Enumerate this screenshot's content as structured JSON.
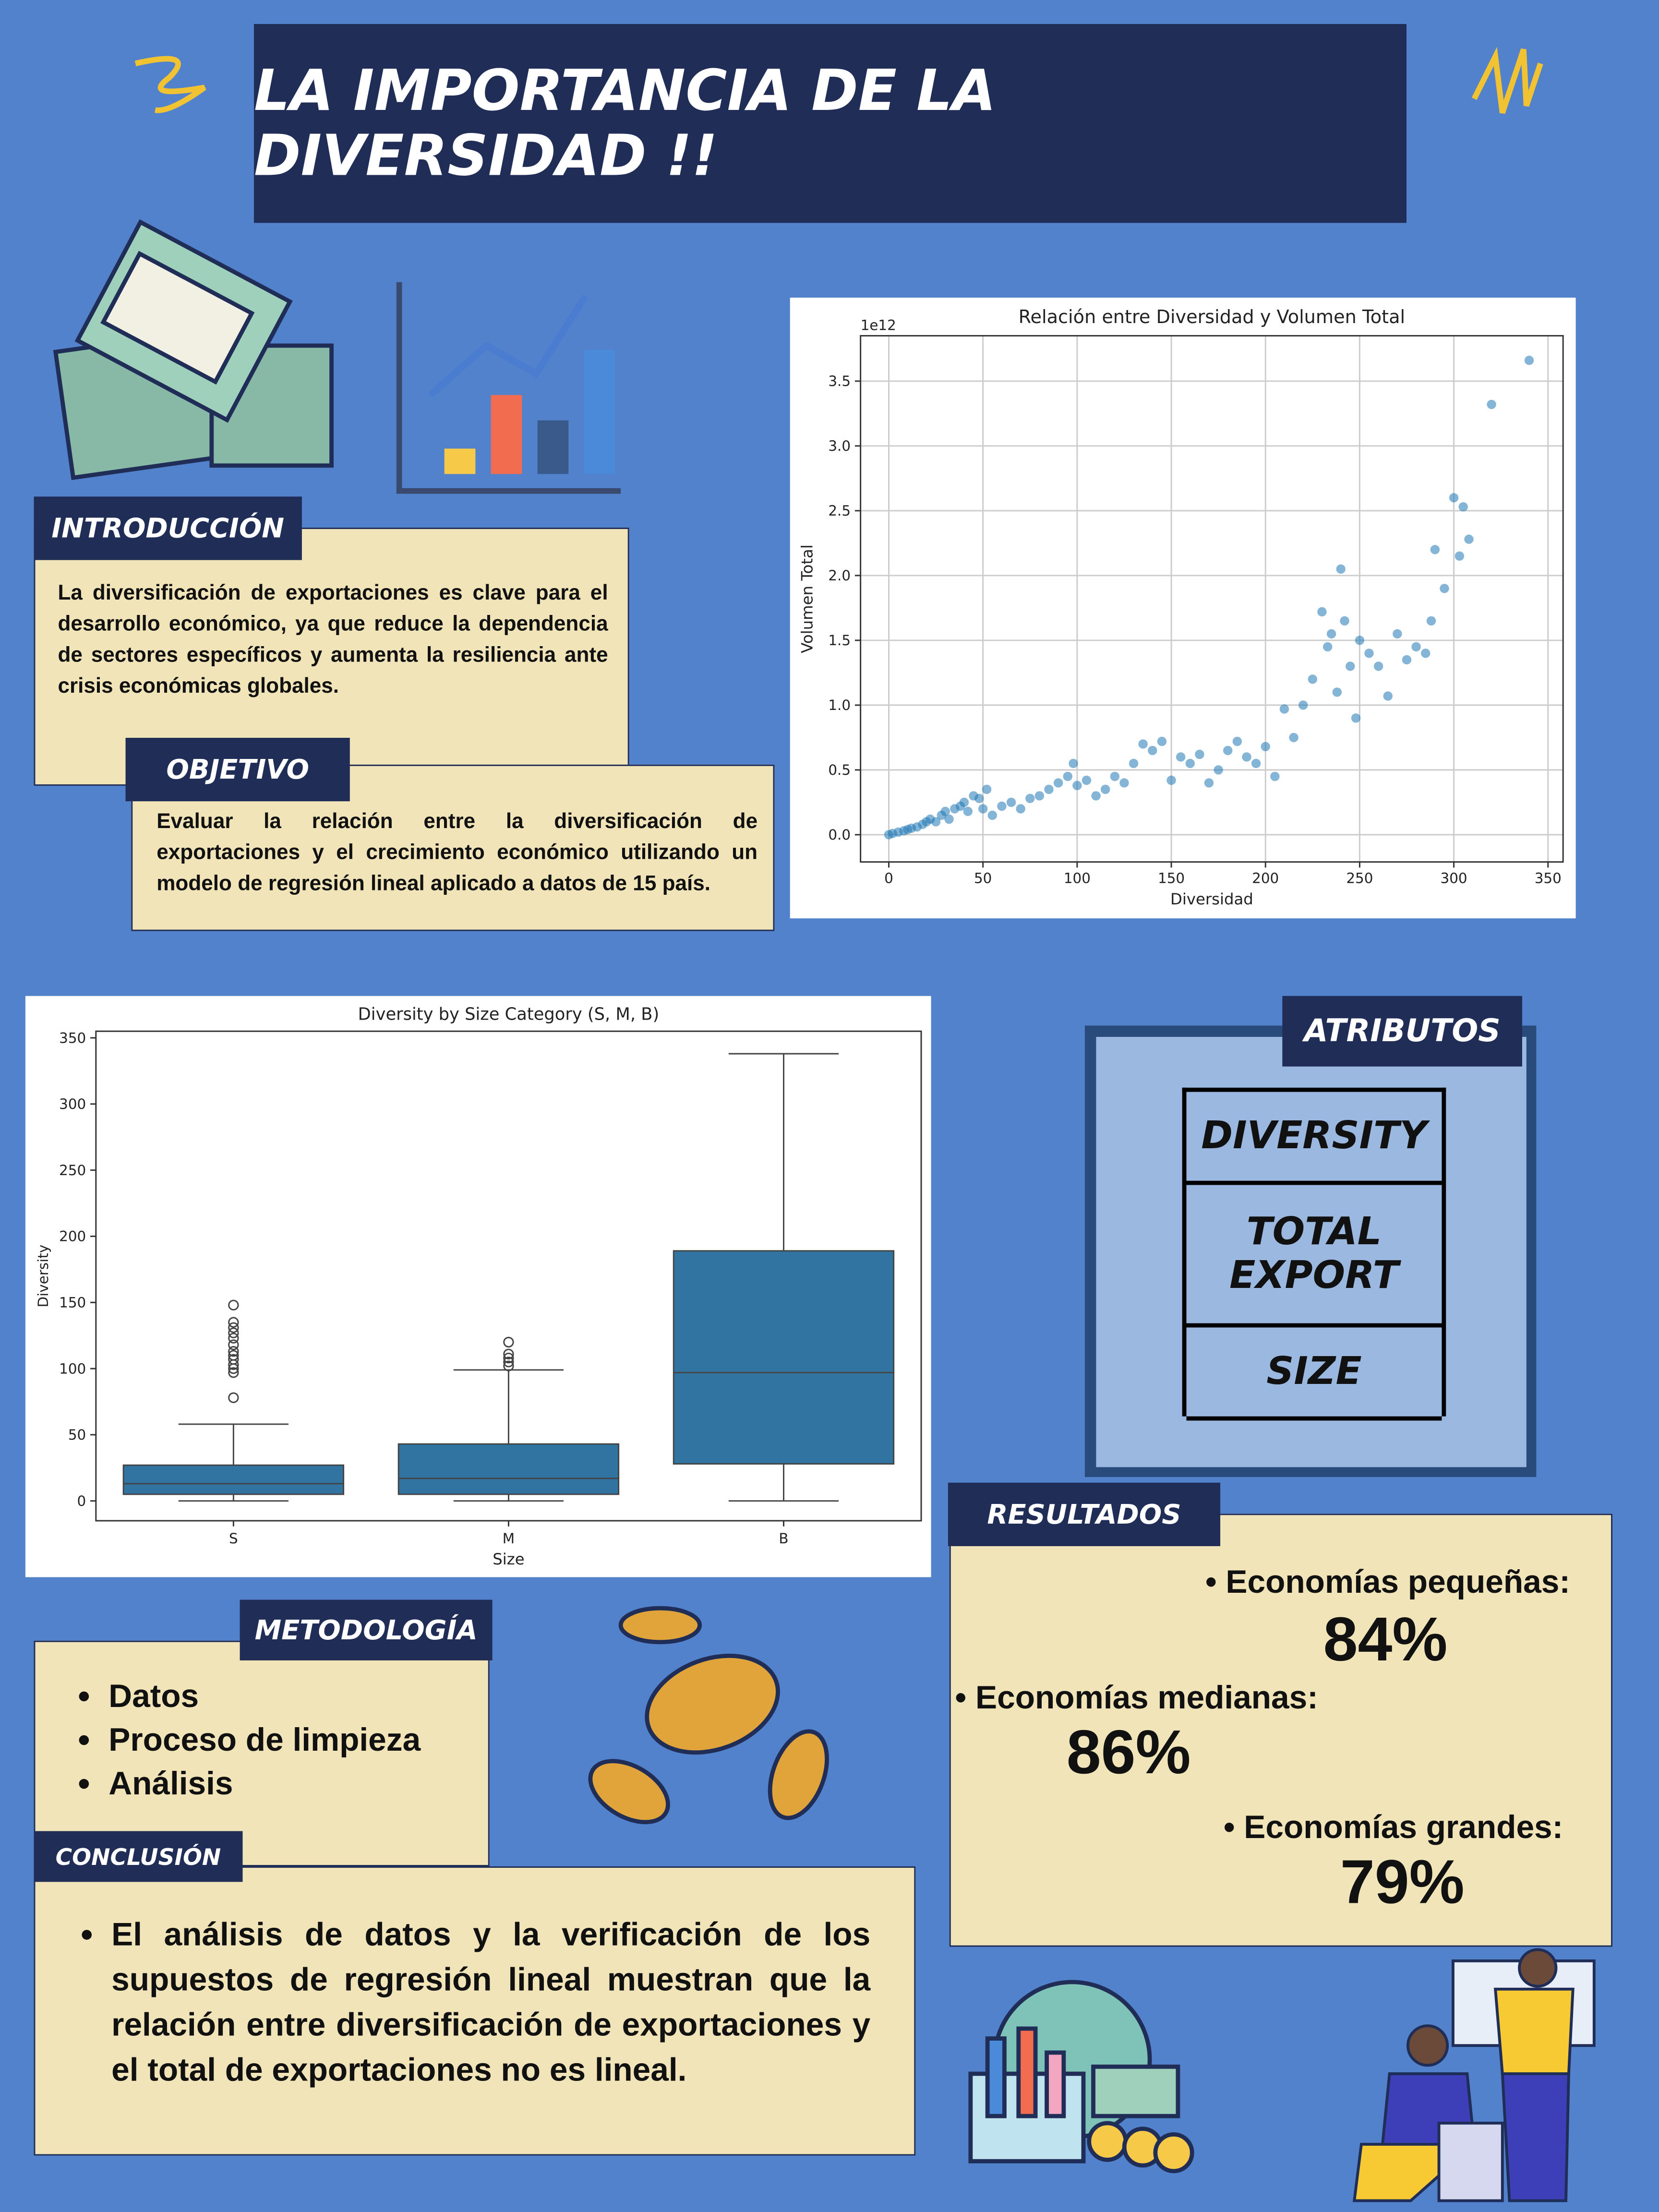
{
  "header": {
    "title": "LA IMPORTANCIA DE LA DIVERSIDAD !!"
  },
  "introduccion": {
    "label": "INTRODUCCIÓN",
    "text": "La diversificación de exportaciones es clave para el desarrollo económico, ya que reduce la dependencia de sectores específicos y aumenta la resiliencia ante crisis económicas globales."
  },
  "objetivo": {
    "label": "OBJETIVO",
    "text": "Evaluar la relación entre la diversificación de exportaciones y el crecimiento económico utilizando un modelo de regresión lineal aplicado a datos de 15 país."
  },
  "atributos": {
    "label": "ATRIBUTOS",
    "items": [
      "DIVERSITY",
      "TOTAL EXPORT",
      "SIZE"
    ]
  },
  "resultados": {
    "label": "RESULTADOS",
    "items": [
      {
        "label": "Economías pequeñas:",
        "value": "84%"
      },
      {
        "label": "Economías medianas:",
        "value": "86%"
      },
      {
        "label": "Economías grandes:",
        "value": "79%"
      }
    ]
  },
  "metodologia": {
    "label": "METODOLOGÍA",
    "items": [
      "Datos",
      "Proceso de limpieza",
      "Análisis"
    ]
  },
  "conclusion": {
    "label": "CONCLUSIÓN",
    "items": [
      "El análisis de datos y la verificación de los supuestos de regresión lineal muestran que la relación entre diversificación de exportaciones y el total de exportaciones no es lineal."
    ]
  },
  "chart_data": [
    {
      "type": "scatter",
      "title": "Relación entre Diversidad y Volumen Total",
      "xlabel": "Diversidad",
      "ylabel": "Volumen Total",
      "y_offset_label": "1e12",
      "color": "#1f77b4",
      "grid": true,
      "x": [
        0,
        2,
        5,
        8,
        10,
        12,
        15,
        18,
        20,
        22,
        25,
        28,
        30,
        32,
        35,
        38,
        40,
        42,
        45,
        48,
        50,
        52,
        55,
        60,
        65,
        70,
        75,
        80,
        85,
        90,
        95,
        98,
        100,
        105,
        110,
        115,
        120,
        125,
        130,
        135,
        140,
        145,
        150,
        155,
        160,
        165,
        170,
        175,
        180,
        185,
        190,
        195,
        200,
        205,
        210,
        215,
        220,
        225,
        230,
        233,
        235,
        238,
        240,
        242,
        245,
        248,
        250,
        255,
        260,
        265,
        270,
        275,
        280,
        285,
        288,
        290,
        295,
        300,
        303,
        305,
        308,
        320,
        340
      ],
      "values": [
        0,
        0.01,
        0.02,
        0.03,
        0.04,
        0.05,
        0.06,
        0.08,
        0.1,
        0.12,
        0.1,
        0.15,
        0.18,
        0.12,
        0.2,
        0.22,
        0.25,
        0.18,
        0.3,
        0.28,
        0.2,
        0.35,
        0.15,
        0.22,
        0.25,
        0.2,
        0.28,
        0.3,
        0.35,
        0.4,
        0.45,
        0.55,
        0.38,
        0.42,
        0.3,
        0.35,
        0.45,
        0.4,
        0.55,
        0.7,
        0.65,
        0.72,
        0.42,
        0.6,
        0.55,
        0.62,
        0.4,
        0.5,
        0.65,
        0.72,
        0.6,
        0.55,
        0.68,
        0.45,
        0.97,
        0.75,
        1.0,
        1.2,
        1.72,
        1.45,
        1.55,
        1.1,
        2.05,
        1.65,
        1.3,
        0.9,
        1.5,
        1.4,
        1.3,
        1.07,
        1.55,
        1.35,
        1.45,
        1.4,
        1.65,
        2.2,
        1.9,
        2.6,
        2.15,
        2.53,
        2.28,
        3.32,
        3.66
      ],
      "xlim": [
        -15,
        358
      ],
      "ylim": [
        -0.21,
        3.85
      ],
      "xticks": [
        0,
        50,
        100,
        150,
        200,
        250,
        300,
        350
      ],
      "yticks": [
        {
          "value": 0,
          "label": "0.0"
        },
        0.5,
        {
          "value": 1,
          "label": "1.0"
        },
        1.5,
        {
          "value": 2,
          "label": "2.0"
        },
        2.5,
        {
          "value": 3,
          "label": "3.0"
        },
        3.5
      ]
    },
    {
      "type": "box",
      "title": "Diversity by Size Category (S, M, B)",
      "xlabel": "Size",
      "ylabel": "Diversity",
      "color": "#3274a1",
      "categories": [
        "S",
        "M",
        "B"
      ],
      "boxes": [
        {
          "low": 0,
          "q1": 5,
          "median": 13,
          "q3": 27,
          "high": 58,
          "outliers": [
            78,
            97,
            100,
            103,
            107,
            110,
            113,
            118,
            123,
            127,
            131,
            135,
            148
          ]
        },
        {
          "low": 0,
          "q1": 5,
          "median": 17,
          "q3": 43,
          "high": 99,
          "outliers": [
            102,
            105,
            108,
            111,
            120
          ]
        },
        {
          "low": 0,
          "q1": 28,
          "median": 97,
          "q3": 189,
          "high": 338,
          "outliers": []
        }
      ],
      "ylim": [
        -15,
        355
      ],
      "yticks": [
        0,
        50,
        100,
        150,
        200,
        250,
        300,
        350
      ]
    }
  ]
}
